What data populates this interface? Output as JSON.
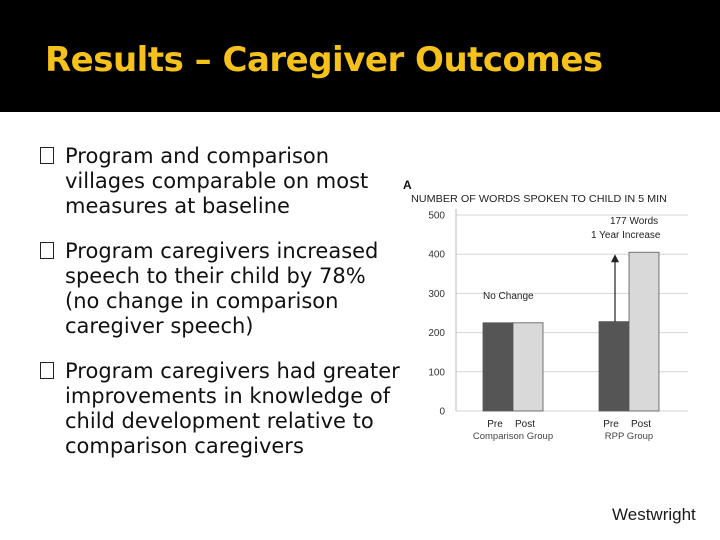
{
  "slide": {
    "title": "Results – Caregiver Outcomes",
    "bullets": [
      "Program and comparison villages comparable on most measures at baseline",
      "Program caregivers increased speech to their child by 78% (no change in comparison caregiver speech)",
      "Program caregivers had greater improvements in knowledge of child development relative to comparison caregivers"
    ],
    "footer": "Westwright"
  },
  "colors": {
    "title": "#f6c21a",
    "pre_bar": "#555555",
    "post_bar": "#d9d9d9"
  },
  "chart_data": {
    "type": "bar",
    "panel_label": "A",
    "title": "NUMBER OF WORDS SPOKEN TO CHILD IN 5 MIN",
    "ylim": [
      0,
      500
    ],
    "yticks": [
      "0",
      "100",
      "200",
      "300",
      "400",
      "500"
    ],
    "groups": [
      {
        "name": "Comparison Group",
        "categories": [
          "Pre",
          "Post"
        ],
        "values": [
          225,
          225
        ]
      },
      {
        "name": "RPP Group",
        "categories": [
          "Pre",
          "Post"
        ],
        "values": [
          228,
          405
        ]
      }
    ],
    "annotations": {
      "no_change": "No Change",
      "increase_value": "177 Words",
      "increase_period": "1 Year Increase"
    }
  }
}
